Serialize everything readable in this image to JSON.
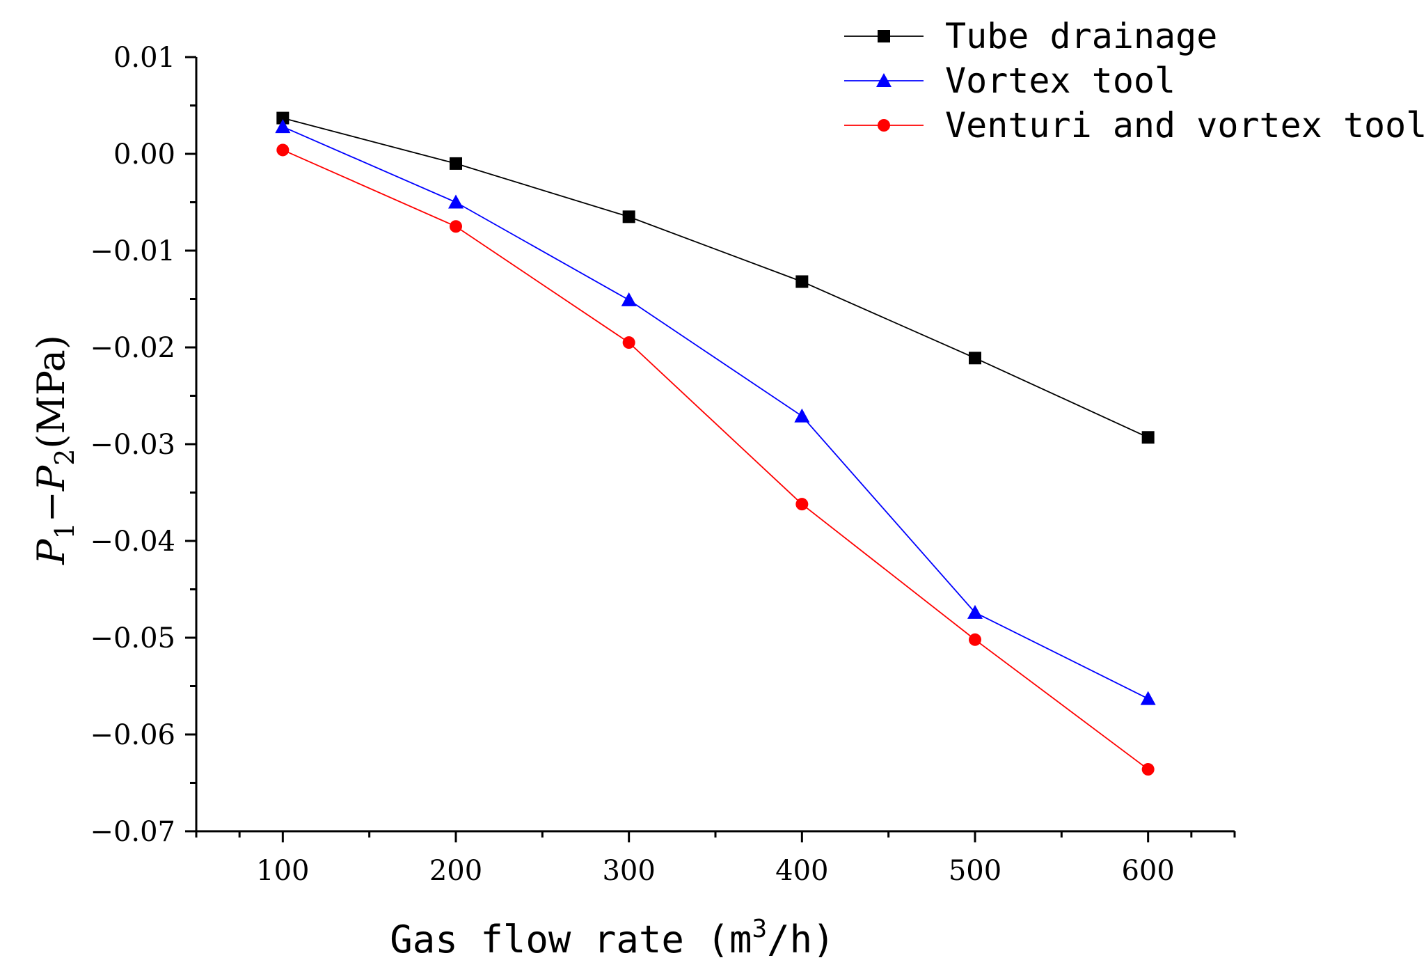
{
  "chart_data": {
    "type": "line",
    "title": "",
    "xlabel": {
      "prefix": "Gas flow rate (m",
      "sup": "3",
      "suffix": "/h)"
    },
    "ylabel": {
      "p": "P",
      "sub1": "1",
      "minus": "−",
      "p2": "P",
      "sub2": "2",
      "unit": "(MPa)"
    },
    "x": [
      100,
      200,
      300,
      400,
      500,
      600
    ],
    "xlim": [
      50,
      650
    ],
    "ylim": [
      -0.07,
      0.01
    ],
    "x_ticks": [
      100,
      200,
      300,
      400,
      500,
      600
    ],
    "x_tick_labels": [
      "100",
      "200",
      "300",
      "400",
      "500",
      "600"
    ],
    "y_ticks": [
      0.01,
      0.0,
      -0.01,
      -0.02,
      -0.03,
      -0.04,
      -0.05,
      -0.06,
      -0.07
    ],
    "y_tick_labels": [
      "0.01",
      "0.00",
      "−0.01",
      "−0.02",
      "−0.03",
      "−0.04",
      "−0.05",
      "−0.06",
      "−0.07"
    ],
    "legend_position": "top-right",
    "grid": false,
    "series": [
      {
        "name": "Tube drainage",
        "color": "#000000",
        "marker": "square",
        "values": [
          0.0037,
          -0.001,
          -0.0065,
          -0.0132,
          -0.0211,
          -0.0293
        ]
      },
      {
        "name": "Vortex tool",
        "color": "#0000ff",
        "marker": "triangle",
        "values": [
          0.0028,
          -0.005,
          -0.0151,
          -0.0271,
          -0.0474,
          -0.0563
        ]
      },
      {
        "name": "Venturi and vortex tool",
        "color": "#ff0000",
        "marker": "circle",
        "values": [
          0.0004,
          -0.0075,
          -0.0195,
          -0.0362,
          -0.0502,
          -0.0636
        ]
      }
    ]
  }
}
